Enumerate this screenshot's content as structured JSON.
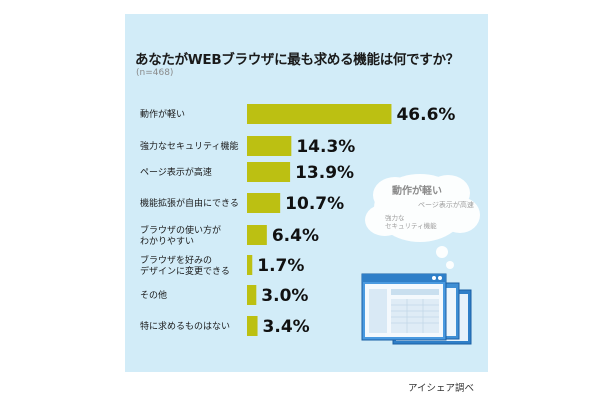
{
  "chart_data": {
    "type": "bar",
    "orientation": "horizontal",
    "title": "あなたがWEBブラウザに最も求める機能は何ですか？",
    "subtitle": "(n=468)",
    "categories": [
      [
        "動作が軽い"
      ],
      [
        "強力なセキュリティ機能"
      ],
      [
        "ページ表示が高速"
      ],
      [
        "機能拡張が自由にできる"
      ],
      [
        "ブラウザの使い方が",
        "わかりやすい"
      ],
      [
        "ブラウザを好みの",
        "デザインに変更できる"
      ],
      [
        "その他"
      ],
      [
        "特に求めるものはない"
      ]
    ],
    "values": [
      46.6,
      14.3,
      13.9,
      10.7,
      6.4,
      1.7,
      3.0,
      3.4
    ],
    "value_labels": [
      "46.6%",
      "14.3%",
      "13.9%",
      "10.7%",
      "6.4%",
      "1.7%",
      "3.0%",
      "3.4%"
    ],
    "xlim": [
      0,
      50
    ],
    "bar_color": "#bcc012",
    "grid": false,
    "legend": "none"
  },
  "illustration": {
    "cloud_main": "動作が軽い",
    "cloud_sub1": "ページ表示が高速",
    "cloud_sub2": "強力な\nセキュリティ機能",
    "window_color": "#3f8fd4"
  },
  "source": "アイシェア調べ"
}
